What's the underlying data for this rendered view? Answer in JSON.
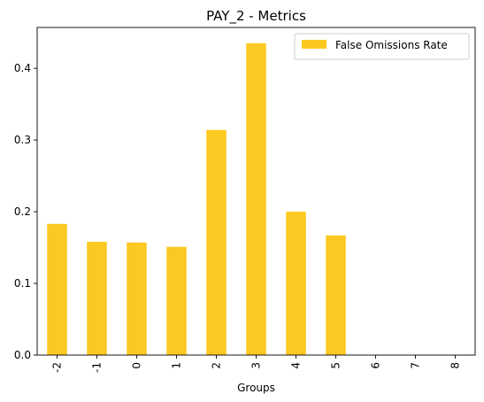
{
  "chart_data": {
    "type": "bar",
    "title": "PAY_2 - Metrics",
    "xlabel": "Groups",
    "ylabel": "",
    "categories": [
      "-2",
      "-1",
      "0",
      "1",
      "2",
      "3",
      "4",
      "5",
      "6",
      "7",
      "8"
    ],
    "series": [
      {
        "name": "False Omissions Rate",
        "color": "#fcc822",
        "values": [
          0.183,
          0.158,
          0.157,
          0.151,
          0.314,
          0.435,
          0.2,
          0.167,
          0,
          0,
          0
        ]
      }
    ],
    "ylim": [
      0,
      0.457
    ],
    "yticks": [
      "0.0",
      "0.1",
      "0.2",
      "0.3",
      "0.4"
    ],
    "ytick_values": [
      0,
      0.1,
      0.2,
      0.3,
      0.4
    ],
    "legend_position": "top-right",
    "grid": false
  }
}
